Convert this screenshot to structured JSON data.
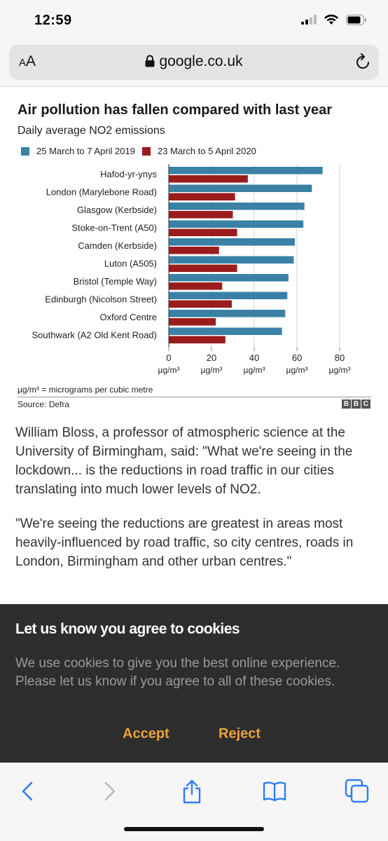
{
  "status_bar": {
    "time": "12:59"
  },
  "address_bar": {
    "text_size_label_small": "A",
    "text_size_label_large": "A",
    "url": "google.co.uk"
  },
  "chart_data": {
    "type": "bar",
    "orientation": "horizontal",
    "title": "Air pollution has fallen compared with last year",
    "subtitle": "Daily average NO2 emissions",
    "categories": [
      "Hafod-yr-ynys",
      "London (Marylebone Road)",
      "Glasgow (Kerbside)",
      "Stoke-on-Trent (A50)",
      "Camden (Kerbside)",
      "Luton (A505)",
      "Bristol (Temple Way)",
      "Edinburgh (Nicolson Street)",
      "Oxford Centre",
      "Southwark (A2 Old Kent Road)"
    ],
    "series": [
      {
        "name": "25 March to 7 April 2019",
        "color": "#3a81a5",
        "values": [
          72,
          67,
          63.5,
          63,
          59,
          58.5,
          56,
          55.5,
          54.5,
          53
        ]
      },
      {
        "name": "23 March to 5 April 2020",
        "color": "#9b1c1c",
        "values": [
          37,
          31,
          30,
          32,
          23.5,
          32,
          25,
          29.5,
          22,
          26.5
        ]
      }
    ],
    "xlim": [
      0,
      80
    ],
    "xticks": [
      0,
      20,
      40,
      60,
      80
    ],
    "x_tick_unit": "µg/m³",
    "grid": true,
    "legend_position": "top-left",
    "note": "µg/m³ = micrograms per cubic metre",
    "source": "Source: Defra",
    "logo_letters": [
      "B",
      "B",
      "C"
    ]
  },
  "article": {
    "paragraphs": [
      "William Bloss, a professor of atmospheric science at the University of Birmingham, said: \"What we're seeing in the lockdown... is the reductions in road traffic in our cities translating into much lower levels of NO2.",
      "\"We're seeing the reductions are greatest in areas most heavily-influenced by road traffic, so city centres, roads in London, Birmingham and other urban centres.\""
    ]
  },
  "cookie_banner": {
    "title": "Let us know you agree to cookies",
    "text": "We use cookies to give you the best online experience. Please let us know if you agree to all of these cookies.",
    "accept_label": "Accept",
    "reject_label": "Reject",
    "accent_color": "#e8a23c"
  },
  "toolbar": {
    "icons": [
      "back-icon",
      "forward-icon",
      "share-icon",
      "bookmarks-icon",
      "tabs-icon"
    ]
  }
}
